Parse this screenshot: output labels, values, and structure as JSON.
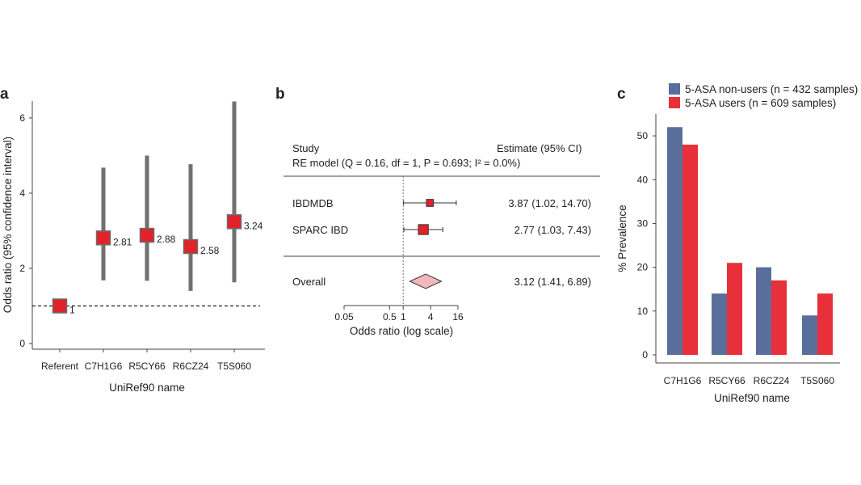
{
  "panels": {
    "a": {
      "letter": "a"
    },
    "b": {
      "letter": "b"
    },
    "c": {
      "letter": "c"
    }
  },
  "chart_data": [
    {
      "type": "scatter",
      "xlabel": "UniRef90 name",
      "ylabel": "Odds ratio (95% confidence interval)",
      "ylim": [
        -0.15,
        6.45
      ],
      "yticks": [
        0,
        2,
        4,
        6
      ],
      "reference_line": 1,
      "marker_color": "#e0232b",
      "interval_color": "#707070",
      "points": [
        {
          "category": "Referent",
          "value": 1,
          "lower": 1,
          "upper": 1,
          "label": "1"
        },
        {
          "category": "C7H1G6",
          "value": 2.81,
          "lower": 1.68,
          "upper": 4.68,
          "label": "2.81"
        },
        {
          "category": "R5CY66",
          "value": 2.88,
          "lower": 1.67,
          "upper": 5.0,
          "label": "2.88"
        },
        {
          "category": "R6CZ24",
          "value": 2.58,
          "lower": 1.4,
          "upper": 4.77,
          "label": "2.58"
        },
        {
          "category": "T5S060",
          "value": 3.24,
          "lower": 1.63,
          "upper": 6.44,
          "label": "3.24"
        }
      ]
    },
    {
      "type": "forest",
      "header_left": "Study",
      "header_right": "Estimate (95% CI)",
      "re_model": "RE model (Q = 0.16, df = 1, P = 0.693; I² = 0.0%)",
      "xlabel": "Odds ratio (log scale)",
      "xticks": [
        0.05,
        0.5,
        1,
        4,
        16
      ],
      "xtick_labels": [
        "0.05",
        "0.5",
        "1",
        "4",
        "16"
      ],
      "studies": [
        {
          "name": "IBDMDB",
          "estimate": 3.87,
          "lower": 1.02,
          "upper": 14.7,
          "text": "3.87 (1.02, 14.70)",
          "weight": 0.3
        },
        {
          "name": "SPARC IBD",
          "estimate": 2.77,
          "lower": 1.03,
          "upper": 7.43,
          "text": "2.77 (1.03,  7.43)",
          "weight": 0.7
        }
      ],
      "overall": {
        "name": "Overall",
        "estimate": 3.12,
        "lower": 1.41,
        "upper": 6.89,
        "text": "3.12 (1.41,  6.89)"
      },
      "study_marker_color": "#e0232b",
      "overall_color": "#f2b6bd"
    },
    {
      "type": "bar",
      "categories": [
        "C7H1G6",
        "R5CY66",
        "R6CZ24",
        "T5S060"
      ],
      "series": [
        {
          "name": "5-ASA non-users (n = 432 samples)",
          "values": [
            52,
            14,
            20,
            9
          ],
          "color": "#5a6e9c"
        },
        {
          "name": "5-ASA users (n = 609 samples)",
          "values": [
            48,
            21,
            17,
            14
          ],
          "color": "#e8303a"
        }
      ],
      "xlabel": "UniRef90 name",
      "ylabel": "% Prevalence",
      "ylim": [
        0,
        55
      ],
      "yticks": [
        0,
        10,
        20,
        30,
        40,
        50
      ],
      "legend_position": "top-left"
    }
  ]
}
